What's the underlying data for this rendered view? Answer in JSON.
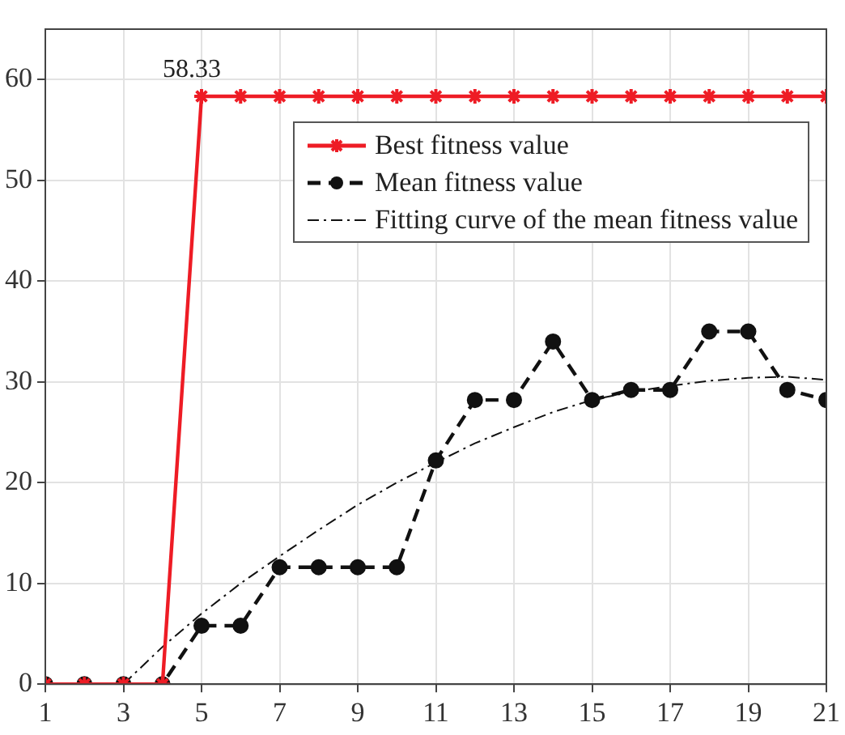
{
  "chart_data": {
    "type": "line",
    "x": [
      1,
      2,
      3,
      4,
      5,
      6,
      7,
      8,
      9,
      10,
      11,
      12,
      13,
      14,
      15,
      16,
      17,
      18,
      19,
      20,
      21
    ],
    "series": [
      {
        "name": "Best fitness value",
        "color": "#ee1c25",
        "marker": "cross",
        "line_style": "solid",
        "values": [
          0,
          0,
          0,
          0,
          58.33,
          58.33,
          58.33,
          58.33,
          58.33,
          58.33,
          58.33,
          58.33,
          58.33,
          58.33,
          58.33,
          58.33,
          58.33,
          58.33,
          58.33,
          58.33,
          58.33
        ]
      },
      {
        "name": "Mean fitness value",
        "color": "#111111",
        "marker": "circle",
        "line_style": "dashed",
        "values": [
          0,
          0,
          0,
          0,
          5.8,
          5.8,
          11.6,
          11.6,
          11.6,
          11.6,
          22.2,
          28.2,
          28.2,
          34,
          28.2,
          29.2,
          29.2,
          35,
          35,
          29.2,
          28.2
        ]
      },
      {
        "name": "Fitting curve of the mean fitness value",
        "color": "#111111",
        "marker": "none",
        "line_style": "dotted",
        "x": [
          3,
          4,
          5,
          6,
          7,
          8,
          9,
          10,
          11,
          12,
          13,
          14,
          15,
          16,
          17,
          18,
          19,
          20,
          21
        ],
        "values": [
          0,
          3.7,
          7,
          10,
          12.7,
          15.3,
          17.8,
          20,
          22,
          23.9,
          25.5,
          27,
          28.2,
          29,
          29.6,
          30.1,
          30.4,
          30.5,
          30.2
        ]
      }
    ],
    "annotations": [
      {
        "text": "58.33",
        "x": 5,
        "y": 58.33
      }
    ],
    "xlim": [
      1,
      21
    ],
    "xticks": [
      1,
      3,
      5,
      7,
      9,
      11,
      13,
      15,
      17,
      19,
      21
    ],
    "ylim": [
      0,
      65
    ],
    "yticks": [
      0,
      10,
      20,
      30,
      40,
      50,
      60
    ],
    "grid": true,
    "legend": "top right"
  }
}
